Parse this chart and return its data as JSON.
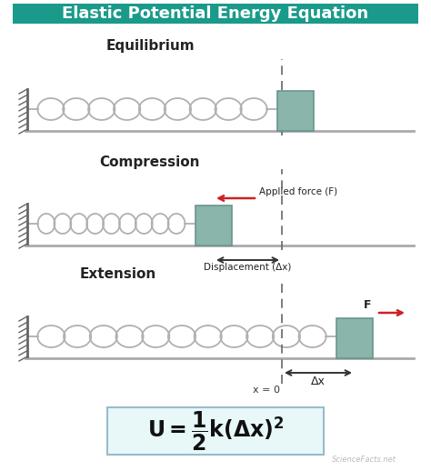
{
  "title": "Elastic Potential Energy Equation",
  "title_bg": "#1a9a8a",
  "title_fg": "#ffffff",
  "bg_color": "#ffffff",
  "wall_color": "#666666",
  "spring_color": "#b0b0b0",
  "block_color": "#8ab5aa",
  "block_edge_color": "#6a9590",
  "ground_color": "#aaaaaa",
  "dashed_color": "#666666",
  "arrow_color": "#cc2222",
  "disp_arrow_color": "#333333",
  "label_equilibrium": "Equilibrium",
  "label_compression": "Compression",
  "label_extension": "Extension",
  "label_applied": "Applied force (F)",
  "label_displacement": "Displacement (Δx)",
  "label_x0": "x = 0",
  "label_dx": "Δx",
  "label_F": "F",
  "formula_bg": "#e8f8f8",
  "formula_edge": "#99bbcc",
  "watermark": "ScienceFacts.net"
}
